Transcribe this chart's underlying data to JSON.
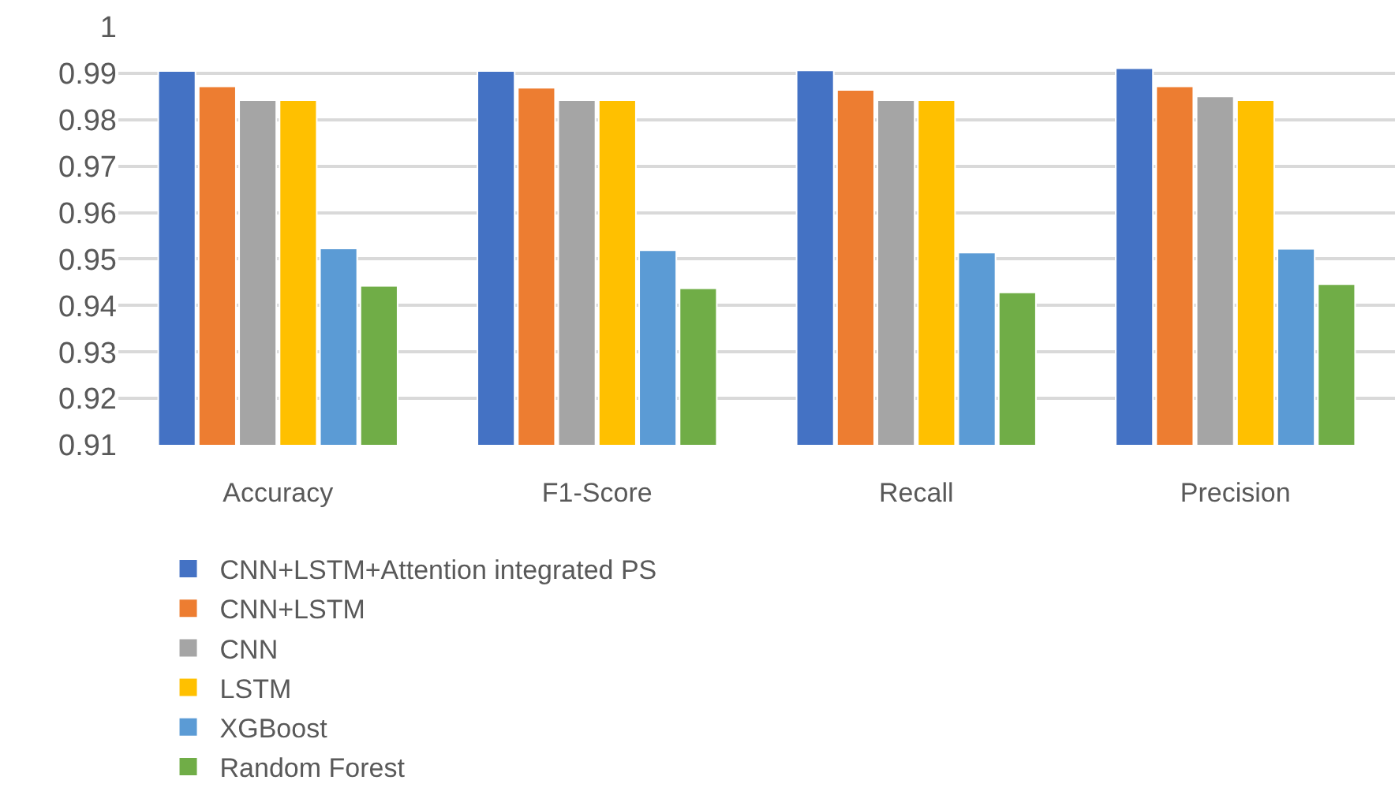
{
  "chart_data": {
    "type": "bar",
    "categories": [
      "Accuracy",
      "F1-Score",
      "Recall",
      "Precision"
    ],
    "series": [
      {
        "name": "CNN+LSTM+Attention integrated PS",
        "color": "#4472c4",
        "values": [
          0.9905,
          0.9905,
          0.9906,
          0.9911
        ]
      },
      {
        "name": "CNN+LSTM",
        "color": "#ed7d31",
        "values": [
          0.9872,
          0.9869,
          0.9864,
          0.9872
        ]
      },
      {
        "name": "CNN",
        "color": "#a5a5a5",
        "values": [
          0.9842,
          0.9842,
          0.9842,
          0.985
        ]
      },
      {
        "name": "LSTM",
        "color": "#ffc000",
        "values": [
          0.9842,
          0.9842,
          0.9842,
          0.9842
        ]
      },
      {
        "name": "XGBoost",
        "color": "#5b9bd5",
        "values": [
          0.9523,
          0.9519,
          0.9514,
          0.9522
        ]
      },
      {
        "name": "Random Forest",
        "color": "#70ad47",
        "values": [
          0.9442,
          0.9437,
          0.9428,
          0.9446
        ]
      }
    ],
    "ylim": [
      0.91,
      1
    ],
    "yticks": [
      0.91,
      0.92,
      0.93,
      0.94,
      0.95,
      0.96,
      0.97,
      0.98,
      0.99,
      1
    ],
    "grid": "y",
    "legend": "bottom"
  }
}
